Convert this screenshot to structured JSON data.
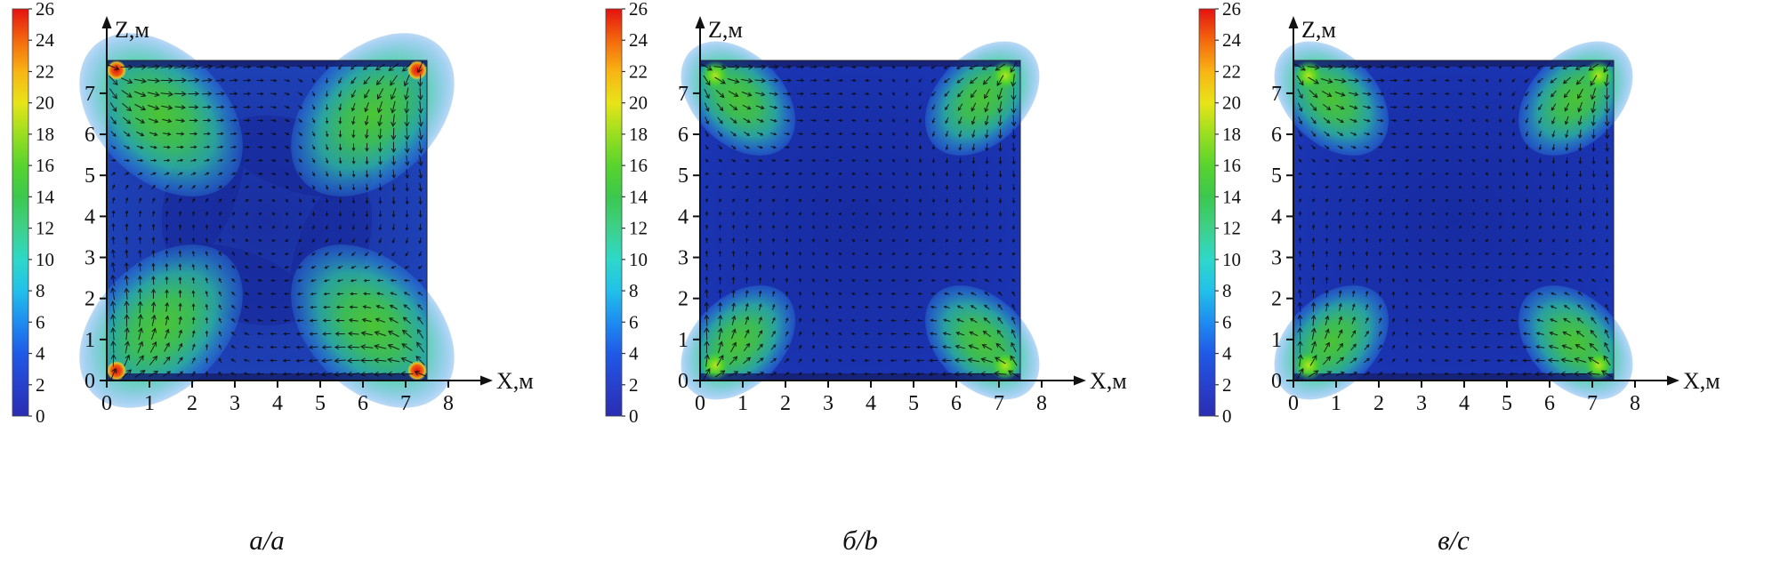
{
  "figure": {
    "background": "#ffffff",
    "description": "Three velocity-magnitude contour maps with superimposed vector arrows (air flow in a room cross-section), each with its own color scale 0-26",
    "colorbar_ticks": [
      "26",
      "24",
      "22",
      "20",
      "18",
      "16",
      "14",
      "12",
      "10",
      "8",
      "6",
      "4",
      "2",
      "0"
    ],
    "colormap": [
      {
        "value": 0,
        "color": "#2a2db2"
      },
      {
        "value": 2,
        "color": "#2741cc"
      },
      {
        "value": 4,
        "color": "#1f5ae6"
      },
      {
        "value": 6,
        "color": "#1e8cf0"
      },
      {
        "value": 8,
        "color": "#22c0ea"
      },
      {
        "value": 10,
        "color": "#2ed8c8"
      },
      {
        "value": 12,
        "color": "#3ed08a"
      },
      {
        "value": 14,
        "color": "#3cc84e"
      },
      {
        "value": 16,
        "color": "#58d42e"
      },
      {
        "value": 18,
        "color": "#9ade20"
      },
      {
        "value": 20,
        "color": "#e8e418"
      },
      {
        "value": 22,
        "color": "#f8b414"
      },
      {
        "value": 24,
        "color": "#f4680e"
      },
      {
        "value": 26,
        "color": "#e41210"
      }
    ]
  },
  "chart_data": [
    {
      "type": "heatmap",
      "subtype": "velocity-magnitude-with-vector-field",
      "caption": "а/a",
      "xlabel": "X,м",
      "ylabel": "Z,м",
      "x_ticks": [
        0,
        1,
        2,
        3,
        4,
        5,
        6,
        7,
        8
      ],
      "z_ticks": [
        0,
        1,
        2,
        3,
        4,
        5,
        6,
        7
      ],
      "xlim": [
        0,
        8
      ],
      "zlim": [
        0,
        7.8
      ],
      "colorbar_range": [
        0,
        26
      ],
      "colorbar_tick_step": 2,
      "flow_pattern": {
        "description": "four strong corner jets forming a clockwise pinwheel with a central vortex",
        "corner_hotspot_level": 26,
        "jet_fan_level": "12-18 (green fans from each corner)",
        "background_level": "2-6 (blue)",
        "hotspot_color": "red at all four corners"
      },
      "style": {
        "base": "#2150c6",
        "dark": "#18289a",
        "jet_strength": 1.7,
        "swirl": 1.0,
        "fan_scale": 1.0,
        "hotspots": "red",
        "arrow_scale": 1.0,
        "arms": true
      }
    },
    {
      "type": "heatmap",
      "subtype": "velocity-magnitude-with-vector-field",
      "caption": "б/b",
      "xlabel": "X,м",
      "ylabel": "Z,м",
      "x_ticks": [
        0,
        1,
        2,
        3,
        4,
        5,
        6,
        7,
        8
      ],
      "z_ticks": [
        0,
        1,
        2,
        3,
        4,
        5,
        6,
        7
      ],
      "xlim": [
        0,
        8
      ],
      "zlim": [
        0,
        7.8
      ],
      "colorbar_range": [
        0,
        26
      ],
      "colorbar_tick_step": 2,
      "flow_pattern": {
        "description": "weaker corner jets hugging the walls, mostly low-velocity blue interior with faint central swirl",
        "corner_hotspot_level": 18,
        "jet_fan_level": "10-18 (small green fans at corners)",
        "background_level": "0-4 (dark blue)",
        "hotspot_color": "green at all four corners"
      },
      "style": {
        "base": "#1d3abc",
        "dark": "#16289c",
        "jet_strength": 1.55,
        "swirl": 0.6,
        "fan_scale": 0.7,
        "hotspots": "green",
        "arrow_scale": 0.85,
        "arms": false
      }
    },
    {
      "type": "heatmap",
      "subtype": "velocity-magnitude-with-vector-field",
      "caption": "в/c",
      "xlabel": "X,м",
      "ylabel": "Z,м",
      "x_ticks": [
        0,
        1,
        2,
        3,
        4,
        5,
        6,
        7,
        8
      ],
      "z_ticks": [
        0,
        1,
        2,
        3,
        4,
        5,
        6,
        7
      ],
      "xlim": [
        0,
        8
      ],
      "zlim": [
        0,
        7.8
      ],
      "colorbar_range": [
        0,
        26
      ],
      "colorbar_tick_step": 2,
      "flow_pattern": {
        "description": "weaker corner jets hugging the walls, mostly low-velocity blue interior with faint central swirl (nearly identical to panel b)",
        "corner_hotspot_level": 18,
        "jet_fan_level": "10-18 (small green fans at corners)",
        "background_level": "0-4 (dark blue)",
        "hotspot_color": "green at all four corners"
      },
      "style": {
        "base": "#1d3abc",
        "dark": "#16289c",
        "jet_strength": 1.55,
        "swirl": 0.6,
        "fan_scale": 0.7,
        "hotspots": "green",
        "arrow_scale": 0.85,
        "arms": false
      }
    }
  ]
}
